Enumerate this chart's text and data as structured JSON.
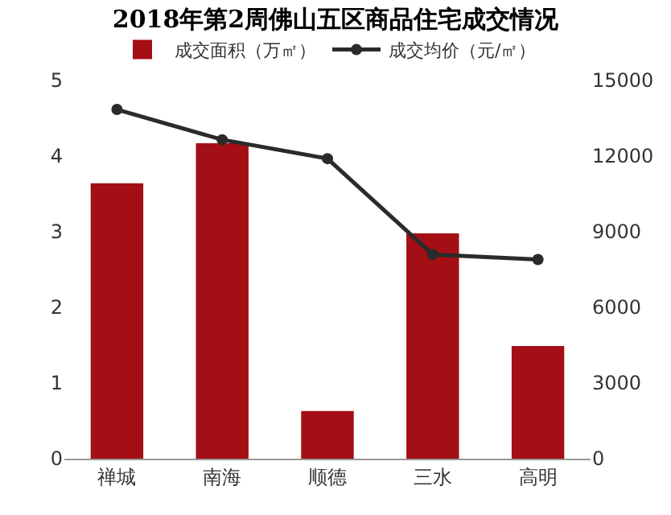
{
  "chart_data": {
    "type": "bar",
    "title": "2018年第2周佛山五区商品住宅成交情况",
    "categories": [
      "禅城",
      "南海",
      "顺德",
      "三水",
      "高明"
    ],
    "series": [
      {
        "name": "成交面积（万㎡）",
        "color": "#a30f14",
        "values": [
          3.64,
          4.17,
          0.63,
          2.98,
          1.49
        ]
      },
      {
        "name": "成交均价（元/㎡）",
        "color": "#2b2b2b",
        "type": "line",
        "axis": "y2",
        "values": [
          13850,
          12650,
          11900,
          8100,
          7900
        ]
      }
    ],
    "ylim": [
      0,
      5
    ],
    "yticks": [
      0,
      1,
      2,
      3,
      4,
      5
    ],
    "y2lim": [
      0,
      15000
    ],
    "y2ticks": [
      0,
      3000,
      6000,
      9000,
      12000,
      15000
    ],
    "legend": "top",
    "marker": "circle",
    "grid": false
  }
}
